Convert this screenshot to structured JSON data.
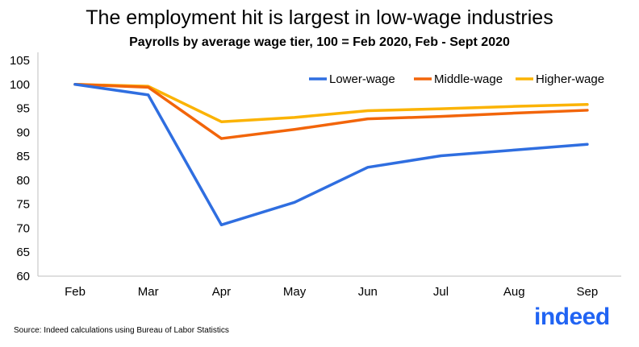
{
  "chart_data": {
    "type": "line",
    "title": "The employment hit is largest in low-wage industries",
    "subtitle": "Payrolls by average wage tier, 100 = Feb 2020, Feb - Sept 2020",
    "xlabel": "",
    "ylabel": "",
    "categories": [
      "Feb",
      "Mar",
      "Apr",
      "May",
      "Jun",
      "Jul",
      "Aug",
      "Sep"
    ],
    "ylim": [
      60,
      105
    ],
    "yticks": [
      60,
      65,
      70,
      75,
      80,
      85,
      90,
      95,
      100,
      105
    ],
    "grid": false,
    "legend_position": "top-right",
    "series": [
      {
        "name": "Lower-wage",
        "color": "#2f6ee0",
        "values": [
          100,
          97.8,
          70.7,
          75.4,
          82.7,
          85.1,
          86.3,
          87.5
        ]
      },
      {
        "name": "Middle-wage",
        "color": "#f2650a",
        "values": [
          100,
          99.4,
          88.7,
          90.6,
          92.8,
          93.3,
          94.0,
          94.6
        ]
      },
      {
        "name": "Higher-wage",
        "color": "#fbb303",
        "values": [
          100,
          99.6,
          92.2,
          93.1,
          94.5,
          94.9,
          95.4,
          95.8
        ]
      }
    ]
  },
  "footer": {
    "source": "Source: Indeed calculations using Bureau of Labor Statistics",
    "logo_text": "indeed"
  }
}
